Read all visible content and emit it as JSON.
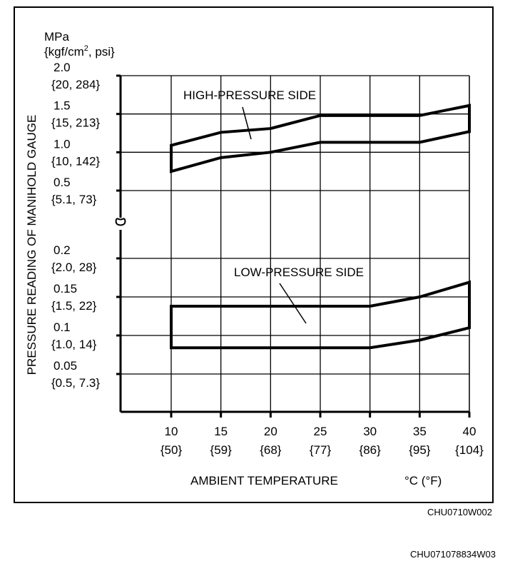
{
  "chart_data": {
    "type": "line",
    "ylabel": "PRESSURE READING OF MANIHOLD GAUGE",
    "yunit_line1": "MPa",
    "yunit_line2_base": "{kgf/cm",
    "yunit_line2_sup": "2",
    "yunit_line2_rest": ", psi}",
    "xlabel": "AMBIENT TEMPERATURE",
    "xunit": "°C (°F)",
    "x_ticks": [
      {
        "c": "10",
        "f": "{50}"
      },
      {
        "c": "15",
        "f": "{59}"
      },
      {
        "c": "20",
        "f": "{68}"
      },
      {
        "c": "25",
        "f": "{77}"
      },
      {
        "c": "30",
        "f": "{86}"
      },
      {
        "c": "35",
        "f": "{95}"
      },
      {
        "c": "40",
        "f": "{104}"
      }
    ],
    "x_range": [
      10,
      40
    ],
    "y_axis_broken": true,
    "y_upper_ticks": [
      {
        "v": 2.0,
        "mpa": "2.0",
        "alt": "{20, 284}"
      },
      {
        "v": 1.5,
        "mpa": "1.5",
        "alt": "{15, 213}"
      },
      {
        "v": 1.0,
        "mpa": "1.0",
        "alt": "{10, 142}"
      },
      {
        "v": 0.5,
        "mpa": "0.5",
        "alt": "{5.1, 73}"
      }
    ],
    "y_lower_ticks": [
      {
        "v": 0.2,
        "mpa": "0.2",
        "alt": "{2.0, 28}"
      },
      {
        "v": 0.15,
        "mpa": "0.15",
        "alt": "{1.5, 22}"
      },
      {
        "v": 0.1,
        "mpa": "0.1",
        "alt": "{1.0, 14}"
      },
      {
        "v": 0.05,
        "mpa": "0.05",
        "alt": "{0.5, 7.3}"
      }
    ],
    "grid": true,
    "bands": [
      {
        "name": "HIGH-PRESSURE SIDE",
        "segment": "upper",
        "upper": {
          "x": [
            10,
            15,
            20,
            25,
            35,
            40
          ],
          "y": [
            1.09,
            1.26,
            1.31,
            1.48,
            1.48,
            1.61
          ]
        },
        "lower": {
          "x": [
            10,
            15,
            20,
            25,
            35,
            40
          ],
          "y": [
            0.75,
            0.93,
            1.0,
            1.13,
            1.13,
            1.27
          ]
        }
      },
      {
        "name": "LOW-PRESSURE SIDE",
        "segment": "lower",
        "upper": {
          "x": [
            10,
            30,
            35,
            40
          ],
          "y": [
            0.138,
            0.138,
            0.15,
            0.169
          ]
        },
        "lower": {
          "x": [
            10,
            30,
            35,
            40
          ],
          "y": [
            0.084,
            0.084,
            0.094,
            0.11
          ]
        }
      }
    ]
  },
  "figure_code": "CHU0710W002",
  "page_code": "CHU071078834W03"
}
